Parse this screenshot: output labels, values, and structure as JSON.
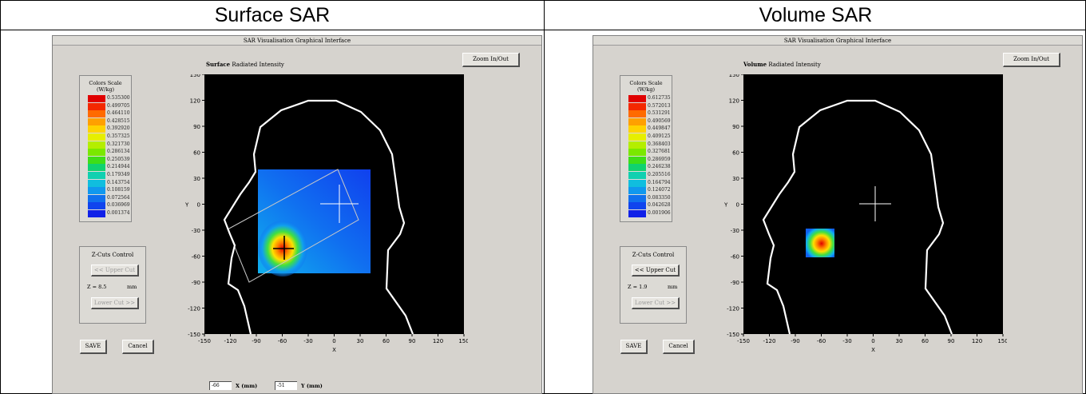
{
  "columns": [
    {
      "header": "Surface SAR"
    },
    {
      "header": "Volume SAR"
    }
  ],
  "panels": [
    {
      "window_title": "SAR Visualisation Graphical Interface",
      "plot_kind": "Surface",
      "plot_subtitle": "Radiated Intensity",
      "zoom_label": "Zoom In/Out",
      "legend_title": "Colors Scale",
      "legend_unit": "(W/kg)",
      "scale_values": [
        "0.535300",
        "0.499705",
        "0.464110",
        "0.428515",
        "0.392920",
        "0.357325",
        "0.321730",
        "0.286134",
        "0.250539",
        "0.214944",
        "0.179349",
        "0.143754",
        "0.108159",
        "0.072564",
        "0.036969",
        "0.001374"
      ],
      "zcut_title": "Z-Cuts Control",
      "upper_cut_label": "<< Upper Cut",
      "z_value": "Z = 8.5",
      "z_unit": "mm",
      "lower_cut_label": "Lower Cut >>",
      "save_label": "SAVE",
      "cancel_label": "Cancel",
      "x_ticks": [
        "-150",
        "-120",
        "-90",
        "-60",
        "-30",
        "0",
        "30",
        "60",
        "90",
        "120",
        "150"
      ],
      "y_ticks": [
        "150",
        "120",
        "90",
        "60",
        "30",
        "0",
        "-30",
        "-60",
        "-90",
        "-120",
        "-150"
      ],
      "x_axis_label": "X",
      "y_axis_label": "Y",
      "coord_x_value": "-66",
      "coord_x_label": "X (mm)",
      "coord_y_value": "-51",
      "coord_y_label": "Y (mm)",
      "upper_cut_disabled": true,
      "lower_cut_disabled": true
    },
    {
      "window_title": "SAR Visualisation Graphical Interface",
      "plot_kind": "Volume",
      "plot_subtitle": "Radiated Intensity",
      "zoom_label": "Zoom In/Out",
      "legend_title": "Colors Scale",
      "legend_unit": "(W/kg)",
      "scale_values": [
        "0.612735",
        "0.572013",
        "0.531291",
        "0.490569",
        "0.449847",
        "0.409125",
        "0.368403",
        "0.327681",
        "0.286959",
        "0.246238",
        "0.205516",
        "0.164794",
        "0.124072",
        "0.083350",
        "0.042628",
        "0.001906"
      ],
      "zcut_title": "Z-Cuts Control",
      "upper_cut_label": "<< Upper Cut",
      "z_value": "Z = 1.9",
      "z_unit": "mm",
      "lower_cut_label": "Lower Cut >>",
      "save_label": "SAVE",
      "cancel_label": "Cancel",
      "x_ticks": [
        "-150",
        "-120",
        "-90",
        "-60",
        "-30",
        "0",
        "30",
        "60",
        "90",
        "120",
        "150"
      ],
      "y_ticks": [
        "150",
        "120",
        "90",
        "60",
        "30",
        "0",
        "-30",
        "-60",
        "-90",
        "-120",
        "-150"
      ],
      "x_axis_label": "X",
      "y_axis_label": "Y",
      "upper_cut_disabled": false,
      "lower_cut_disabled": true
    }
  ],
  "scale_colors": [
    "#e00000",
    "#f42800",
    "#ff6a00",
    "#ffa000",
    "#ffd200",
    "#e6ee00",
    "#b4ee00",
    "#7ae800",
    "#3ede18",
    "#10d270",
    "#10d0b0",
    "#10bede",
    "#1098ee",
    "#1070ee",
    "#1044ee",
    "#1020e8"
  ]
}
